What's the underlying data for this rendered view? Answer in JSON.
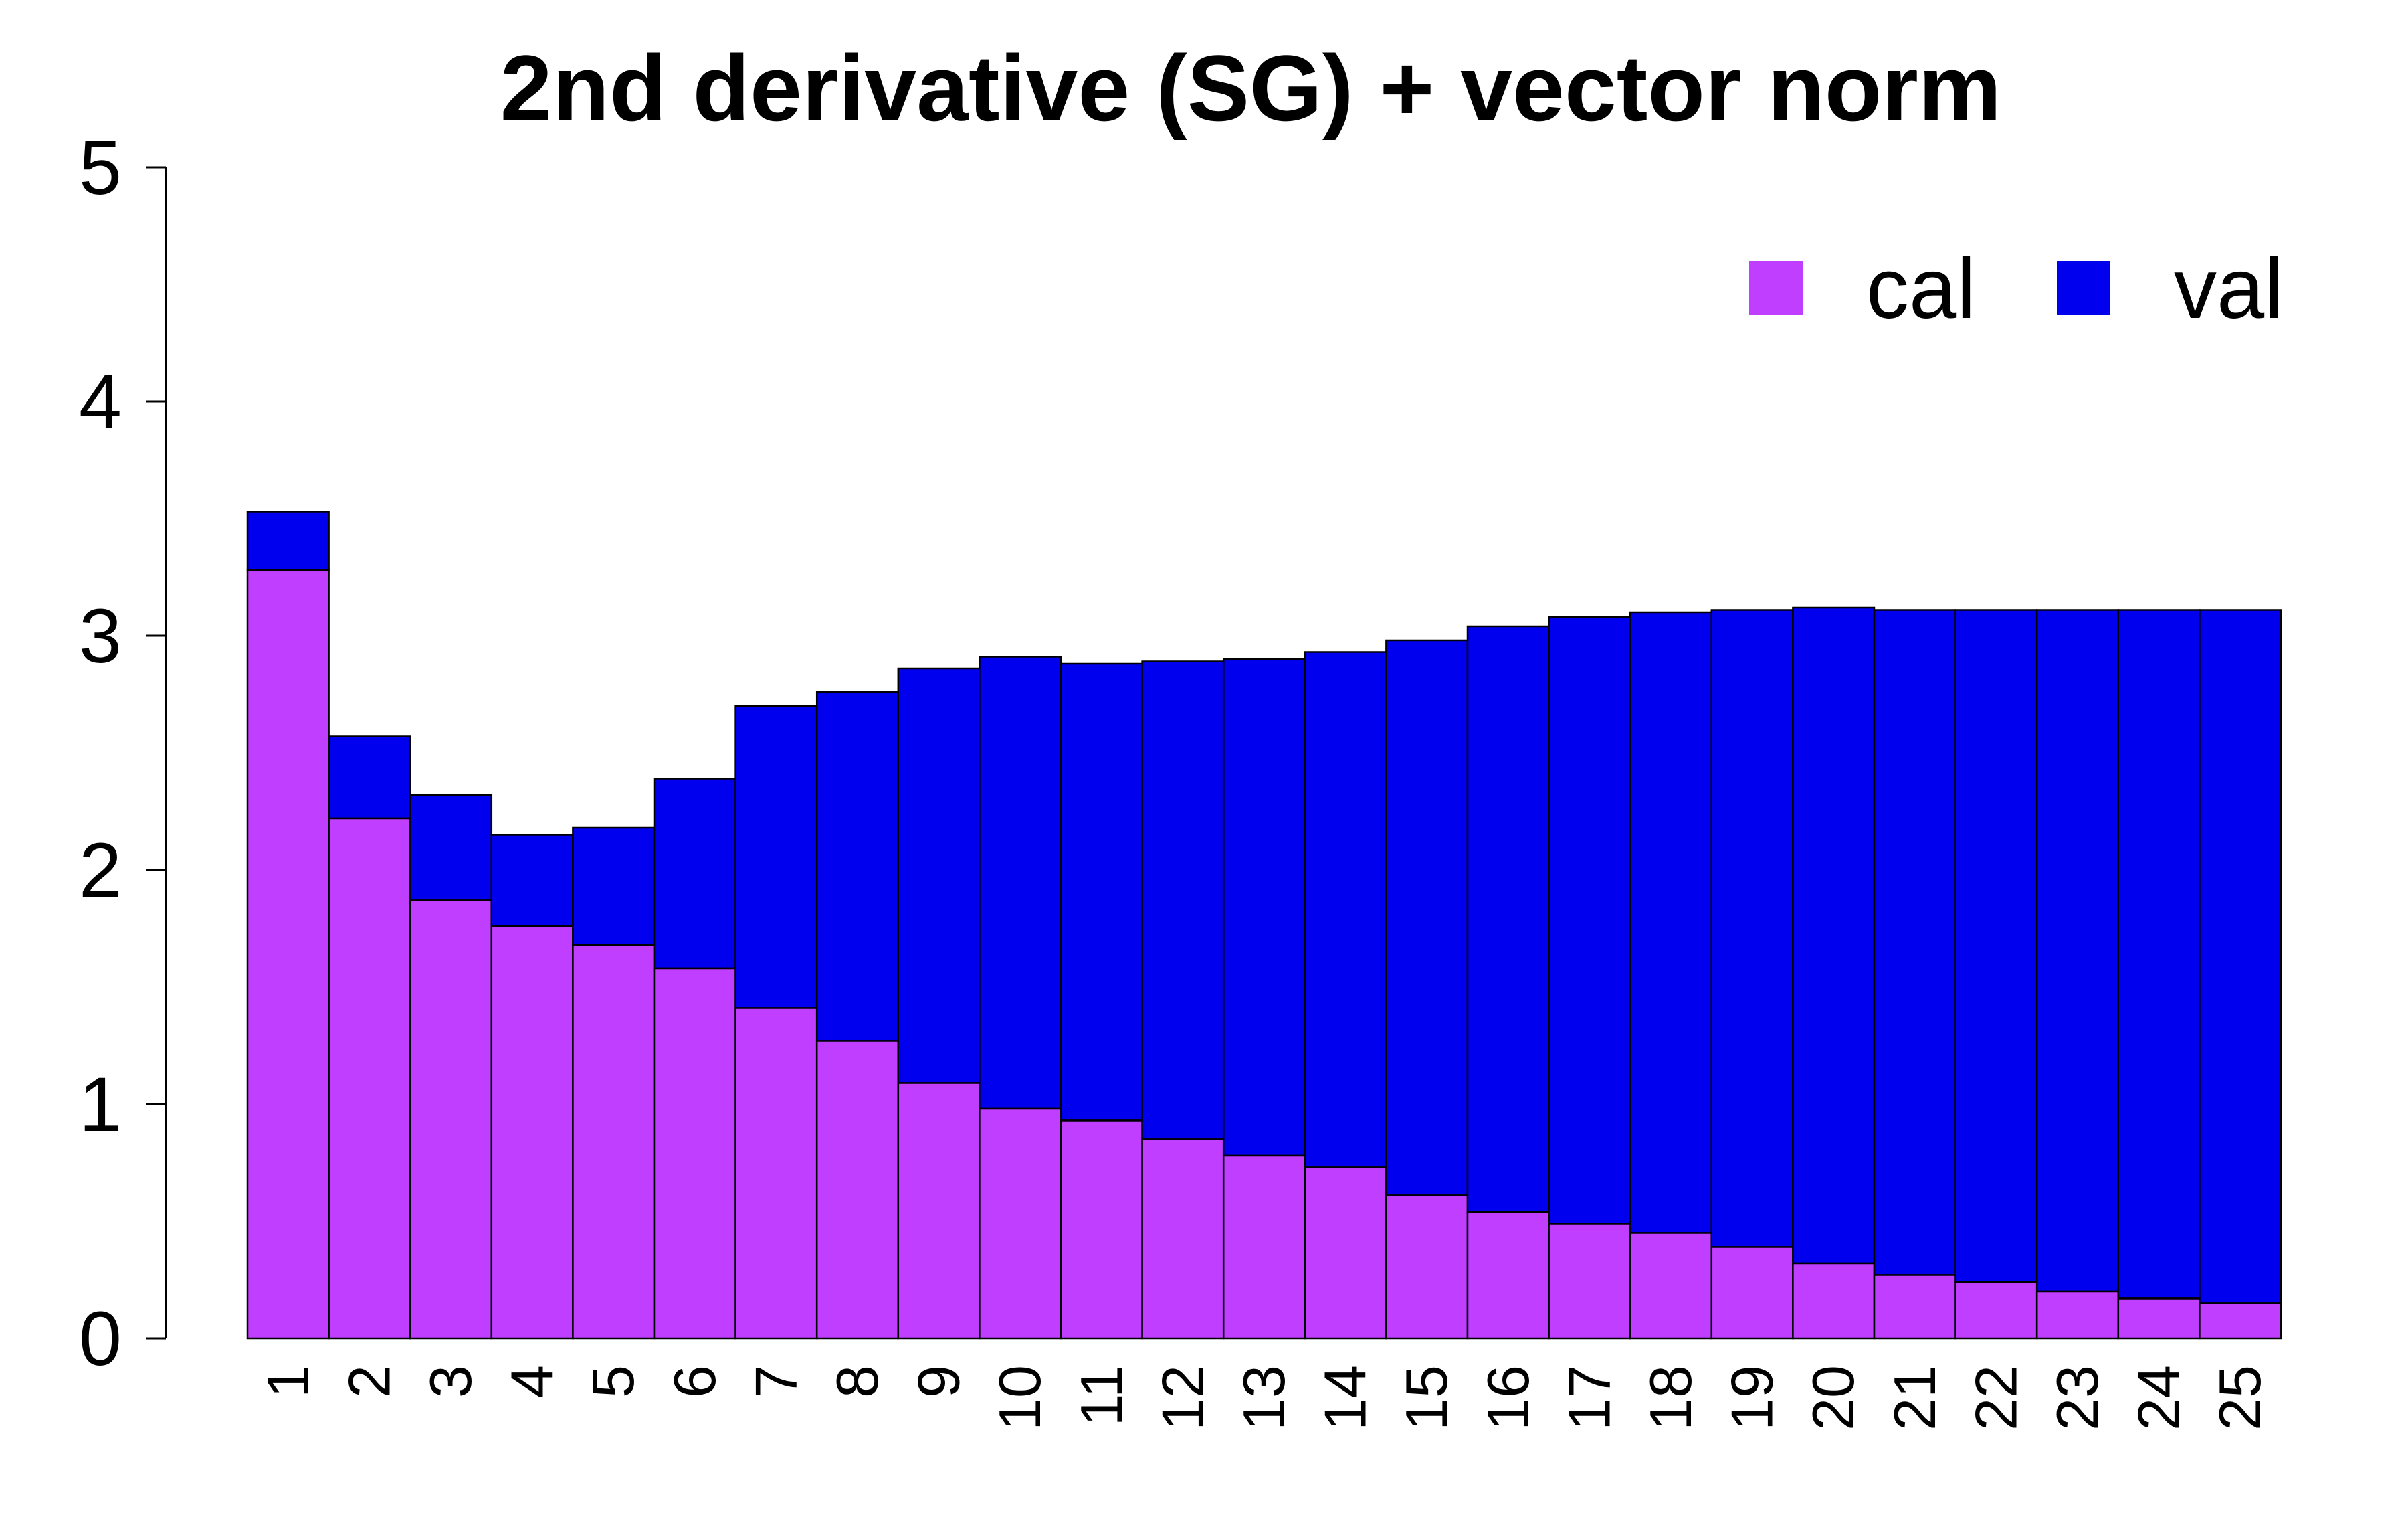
{
  "chart_data": {
    "type": "bar",
    "stacked": true,
    "title": "2nd derivative (SG) + vector norm",
    "xlabel": "",
    "ylabel": "",
    "ylim": [
      0,
      5
    ],
    "yticks": [
      "0",
      "1",
      "2",
      "3",
      "4",
      "5"
    ],
    "grid": false,
    "legend_position": "top-right",
    "categories": [
      "1",
      "2",
      "3",
      "4",
      "5",
      "6",
      "7",
      "8",
      "9",
      "10",
      "11",
      "12",
      "13",
      "14",
      "15",
      "16",
      "17",
      "18",
      "19",
      "20",
      "21",
      "22",
      "23",
      "24",
      "25"
    ],
    "series": [
      {
        "name": "cal",
        "color": "#BF3EFF",
        "values": [
          3.28,
          2.22,
          1.87,
          1.76,
          1.68,
          1.58,
          1.41,
          1.27,
          1.09,
          0.98,
          0.93,
          0.85,
          0.78,
          0.73,
          0.61,
          0.54,
          0.49,
          0.45,
          0.39,
          0.32,
          0.27,
          0.24,
          0.2,
          0.17,
          0.15
        ]
      },
      {
        "name": "val",
        "color": "#0000EE",
        "total_values": [
          3.53,
          2.57,
          2.32,
          2.15,
          2.18,
          2.39,
          2.7,
          2.76,
          2.86,
          2.91,
          2.88,
          2.89,
          2.9,
          2.93,
          2.98,
          3.04,
          3.08,
          3.1,
          3.11,
          3.12,
          3.11,
          3.11,
          3.11,
          3.11,
          3.11
        ]
      }
    ]
  }
}
